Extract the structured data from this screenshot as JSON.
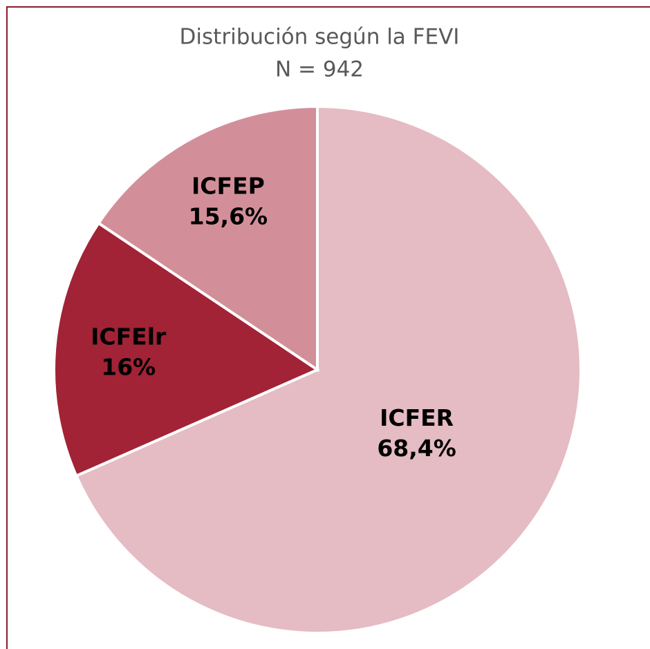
{
  "chart_data": {
    "type": "pie",
    "title": "Distribución según la FEVI",
    "subtitle": "N = 942",
    "categories": [
      "ICFER",
      "ICFElr",
      "ICFEP"
    ],
    "values": [
      68.4,
      16,
      15.6
    ],
    "value_labels": [
      "68,4%",
      "16%",
      "15,6%"
    ],
    "colors": [
      "#e5bcc3",
      "#a22336",
      "#d38f99"
    ]
  }
}
